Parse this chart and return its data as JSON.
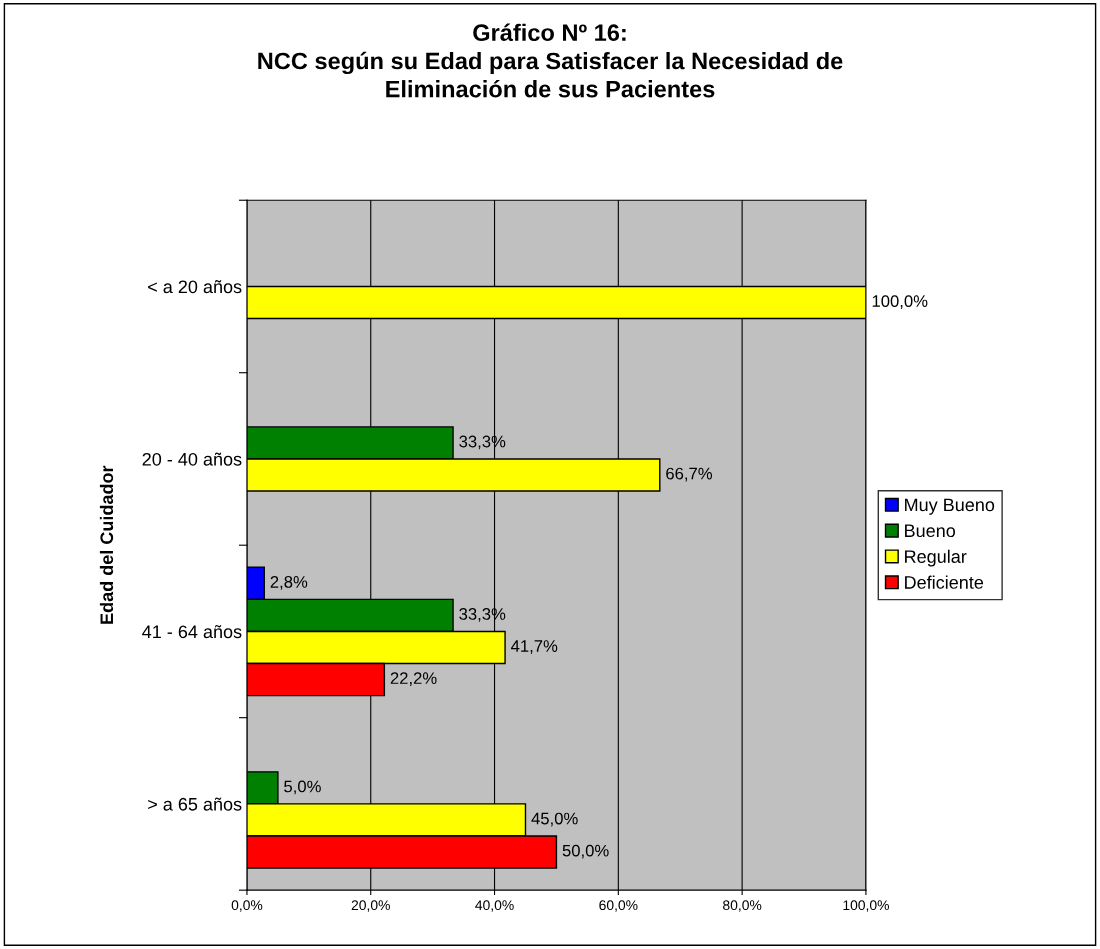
{
  "chart_data": {
    "type": "bar",
    "orientation": "horizontal",
    "title": "Gráfico Nº 16:\nNCC según su Edad para Satisfacer la Necesidad de\nEliminación de sus Pacientes",
    "ylabel": "Edad del Cuidador",
    "categories": [
      "< a 20 años",
      "20 - 40 años",
      "41 - 64 años",
      "> a 65 años"
    ],
    "series": [
      {
        "name": "Muy Bueno",
        "color": "#0000ff",
        "values": [
          null,
          null,
          2.8,
          null
        ],
        "value_labels": [
          null,
          null,
          "2,8%",
          null
        ]
      },
      {
        "name": "Bueno",
        "color": "#008000",
        "values": [
          null,
          33.3,
          33.3,
          5.0
        ],
        "value_labels": [
          null,
          "33,3%",
          "33,3%",
          "5,0%"
        ]
      },
      {
        "name": "Regular",
        "color": "#ffff00",
        "values": [
          100.0,
          66.7,
          41.7,
          45.0
        ],
        "value_labels": [
          "100,0%",
          "66,7%",
          "41,7%",
          "45,0%"
        ]
      },
      {
        "name": "Deficiente",
        "color": "#ff0000",
        "values": [
          null,
          null,
          22.2,
          50.0
        ],
        "value_labels": [
          null,
          null,
          "22,2%",
          "50,0%"
        ]
      }
    ],
    "xlim": [
      0,
      100
    ],
    "xticks": [
      {
        "value": 0,
        "label": "0,0%"
      },
      {
        "value": 20,
        "label": "20,0%"
      },
      {
        "value": 40,
        "label": "40,0%"
      },
      {
        "value": 60,
        "label": "60,0%"
      },
      {
        "value": 80,
        "label": "80,0%"
      },
      {
        "value": 100,
        "label": "100,0%"
      }
    ],
    "grid": "x",
    "legend": "right"
  }
}
